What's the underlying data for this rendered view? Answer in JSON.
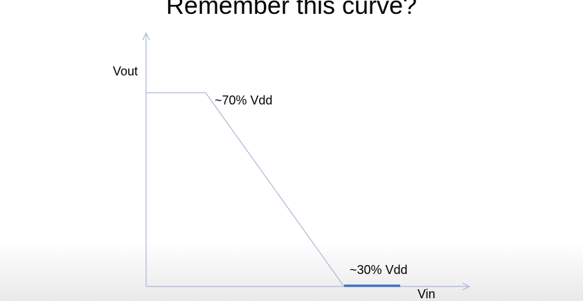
{
  "slide": {
    "title": "Remember this curve?"
  },
  "diagram": {
    "y_axis_label": "Vout",
    "x_axis_label": "Vin",
    "high_level_label": "~70% Vdd",
    "low_level_label": "~30% Vdd"
  },
  "colors": {
    "axis": "#a9b7d6",
    "curve": "#a9b7d6",
    "highlight": "#4472c4",
    "text": "#000000"
  }
}
